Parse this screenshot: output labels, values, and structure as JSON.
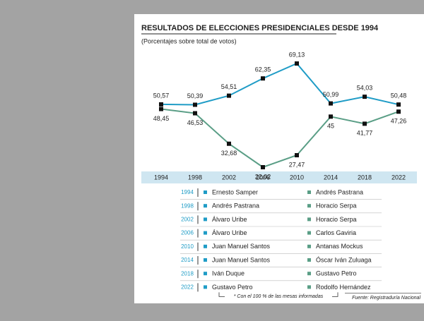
{
  "chart_data": {
    "type": "line",
    "title": "RESULTADOS DE ELECCIONES PRESIDENCIALES DESDE 1994",
    "subtitle": "(Porcentajes sobre total de votos)",
    "categories": [
      "1994",
      "1998",
      "2002",
      "2006",
      "2010",
      "2014",
      "2018",
      "2022"
    ],
    "series": [
      {
        "color": "#1f9cc6",
        "values": [
          50.57,
          50.39,
          54.51,
          62.35,
          69.13,
          50.99,
          54.03,
          50.48
        ],
        "value_labels": [
          "50,57",
          "50,39",
          "54,51",
          "62,35",
          "69,13",
          "50,99",
          "54,03",
          "50,48"
        ],
        "candidates": [
          "Ernesto Samper",
          "Andrés Pastrana",
          "Álvaro Uribe",
          "Álvaro Uribe",
          "Juan Manuel Santos",
          "Juan Manuel Santos",
          "Iván Duque",
          "Gustavo Petro"
        ]
      },
      {
        "color": "#5a9e86",
        "values": [
          48.45,
          46.53,
          32.68,
          22.02,
          27.47,
          45,
          41.77,
          47.26
        ],
        "value_labels": [
          "48,45",
          "46,53",
          "32,68",
          "22,02",
          "27,47",
          "45",
          "41,77",
          "47,26"
        ],
        "candidates": [
          "Andrés Pastrana",
          "Horacio Serpa",
          "Horacio Serpa",
          "Carlos Gaviria",
          "Antanas Mockus",
          "Óscar Iván Zuluaga",
          "Gustavo Petro",
          "Rodolfo Hernández"
        ]
      }
    ],
    "footnote": "* Con el 100 % de las mesas informadas",
    "source": "Fuente: Registraduría Nacional"
  }
}
